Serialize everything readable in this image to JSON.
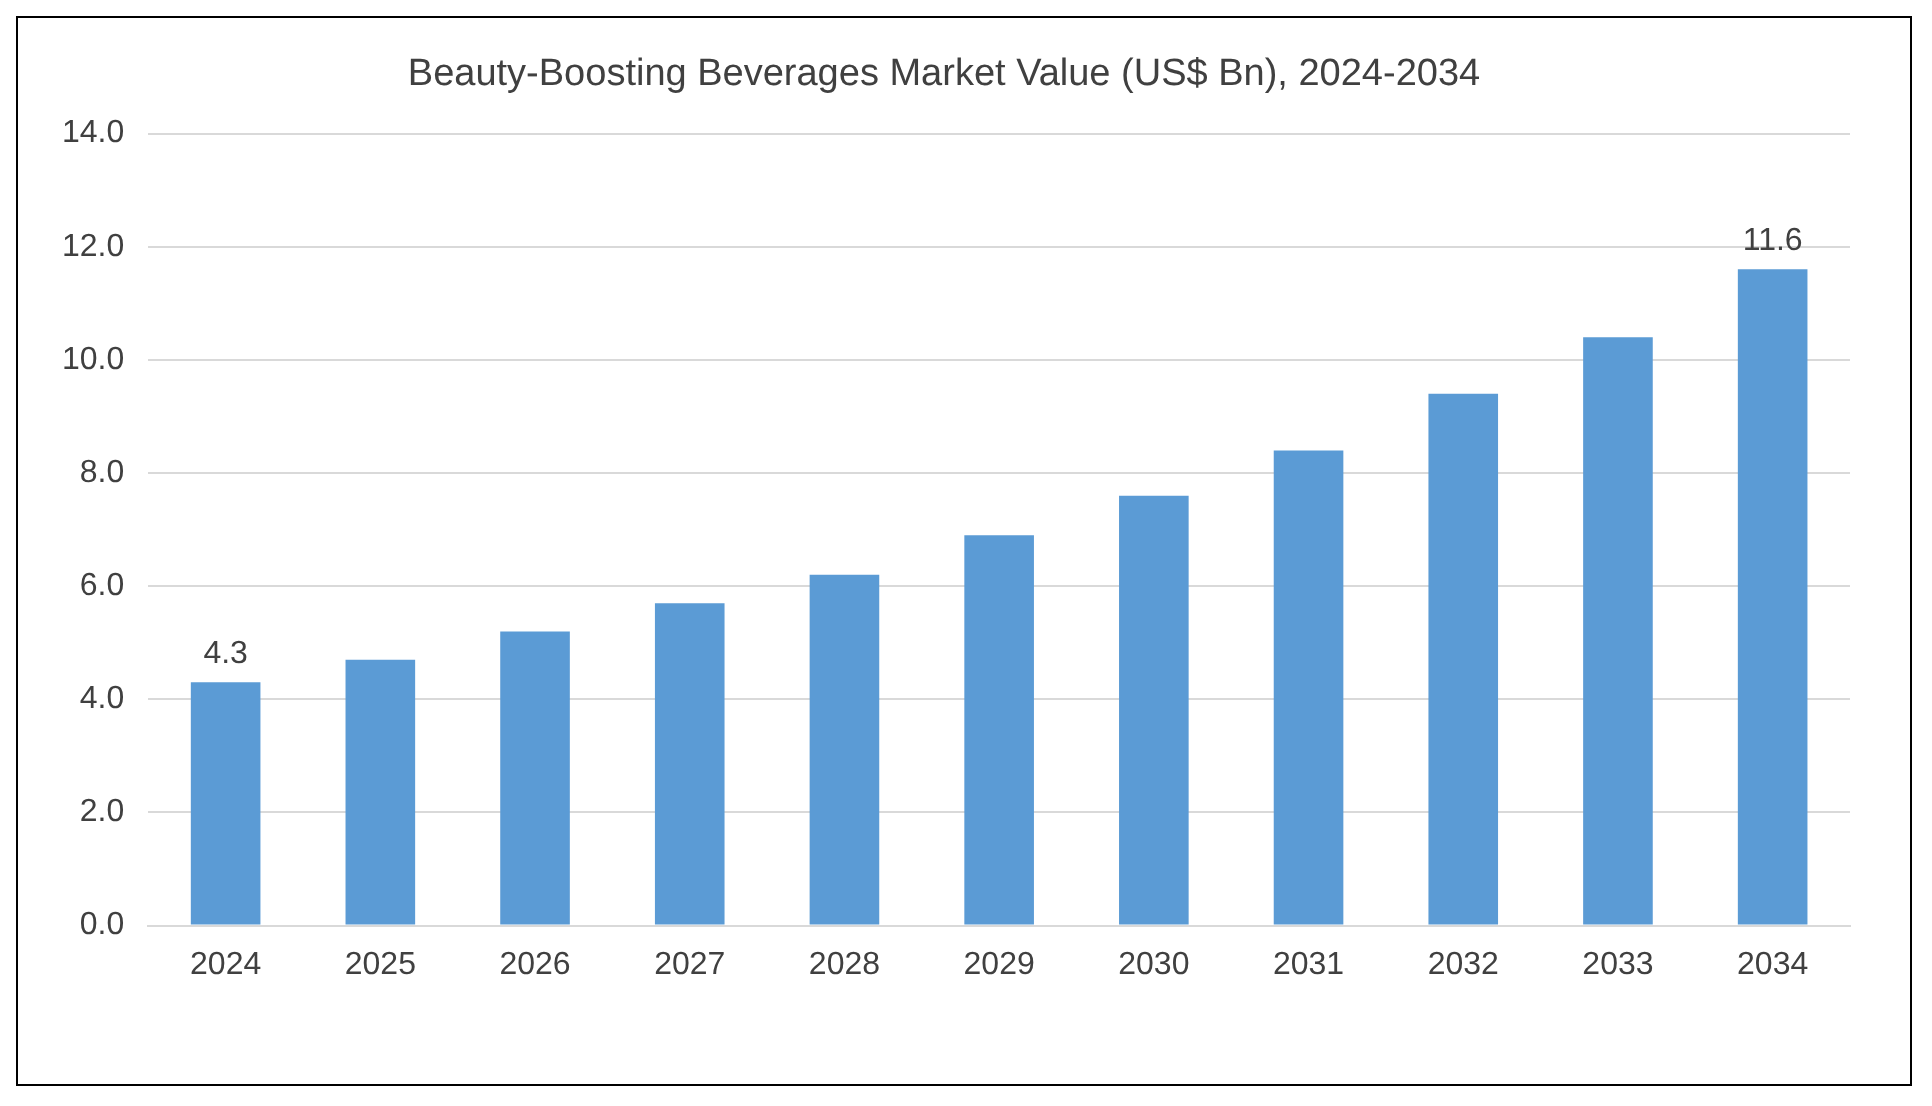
{
  "chart_data": {
    "type": "bar",
    "title": "Beauty-Boosting Beverages Market Value (US$ Bn), 2024-2034",
    "categories": [
      "2024",
      "2025",
      "2026",
      "2027",
      "2028",
      "2029",
      "2030",
      "2031",
      "2032",
      "2033",
      "2034"
    ],
    "values": [
      4.3,
      4.7,
      5.2,
      5.7,
      6.2,
      6.9,
      7.6,
      8.4,
      9.4,
      10.4,
      11.6
    ],
    "value_labels": [
      "4.3",
      null,
      null,
      null,
      null,
      null,
      null,
      null,
      null,
      null,
      "11.6"
    ],
    "color": "#5b9bd5",
    "ylim": [
      0,
      14
    ],
    "yticks": [
      {
        "value": 0,
        "label": "0.0"
      },
      {
        "value": 2,
        "label": "2.0"
      },
      {
        "value": 4,
        "label": "4.0"
      },
      {
        "value": 6,
        "label": "6.0"
      },
      {
        "value": 8,
        "label": "8.0"
      },
      {
        "value": 10,
        "label": "10.0"
      },
      {
        "value": 12,
        "label": "12.0"
      },
      {
        "value": 14,
        "label": "14.0"
      }
    ],
    "grid": "y",
    "legend": false
  }
}
